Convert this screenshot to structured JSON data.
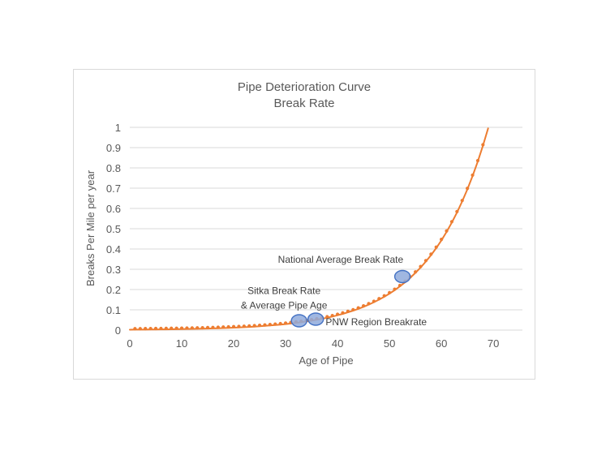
{
  "colors": {
    "curve_orange": "#ED7D31",
    "marker_fill_blue": "#8FAADC",
    "marker_stroke_blue": "#4472C4",
    "gridline_gray": "#D9D9D9",
    "axis_text_gray": "#595959",
    "annotation_text_gray": "#404040",
    "chart_border_gray": "#D9D9D9"
  },
  "chart_data": {
    "type": "line",
    "title": "Pipe Deterioration Curve",
    "subtitle": "Break Rate",
    "xlabel": "Age of Pipe",
    "ylabel": "Breaks Per Mile per year",
    "xlim": [
      0,
      75.6
    ],
    "ylim": [
      0,
      1
    ],
    "x_ticks": [
      0,
      10,
      20,
      30,
      40,
      50,
      60,
      70
    ],
    "y_ticks": [
      0,
      0.1,
      0.2,
      0.3,
      0.4,
      0.5,
      0.6,
      0.7,
      0.8,
      0.9,
      1
    ],
    "grid": "horizontal-only",
    "legend": "none",
    "series": [
      {
        "name": "Break rate deterioration curve",
        "color": "#ED7D31",
        "line_style": "solid",
        "marker": "dot",
        "x_start": 0,
        "x_step": 1,
        "values": [
          0.002,
          0.0022,
          0.0024,
          0.0026,
          0.0029,
          0.0031,
          0.0034,
          0.0038,
          0.0041,
          0.0045,
          0.0049,
          0.0054,
          0.0059,
          0.0064,
          0.007,
          0.0077,
          0.0084,
          0.0092,
          0.0101,
          0.0111,
          0.0121,
          0.0132,
          0.0145,
          0.0158,
          0.0173,
          0.019,
          0.0208,
          0.0227,
          0.0249,
          0.0272,
          0.0298,
          0.0326,
          0.0356,
          0.039,
          0.0426,
          0.0467,
          0.0511,
          0.0559,
          0.0611,
          0.0669,
          0.0732,
          0.0801,
          0.0876,
          0.0959,
          0.1049,
          0.1148,
          0.1256,
          0.1374,
          0.1503,
          0.1645,
          0.18,
          0.1969,
          0.2155,
          0.2357,
          0.2579,
          0.2822,
          0.3088,
          0.3379,
          0.3697,
          0.4045,
          0.4426,
          0.4843,
          0.5299,
          0.5798,
          0.6344,
          0.6941,
          0.7595,
          0.831,
          0.9093,
          0.9948
        ]
      }
    ],
    "markers": [
      {
        "name": "sitka-marker",
        "label": "Sitka Break Rate & Average Pipe Age",
        "x": 32.6,
        "y": 0.046
      },
      {
        "name": "pnw-marker",
        "label": "PNW Region Breakrate",
        "x": 35.8,
        "y": 0.054
      },
      {
        "name": "national-marker",
        "label": "National Average Break Rate",
        "x": 52.5,
        "y": 0.264
      }
    ],
    "annotations": [
      {
        "name": "national-average-annotation",
        "lines": [
          "National Average Break Rate"
        ],
        "x": 40.6,
        "y": 0.348,
        "align": "center"
      },
      {
        "name": "sitka-annotation",
        "lines": [
          "Sitka Break Rate",
          "& Average Pipe Age"
        ],
        "x": 29.7,
        "y": 0.158,
        "align": "center"
      },
      {
        "name": "pnw-annotation",
        "lines": [
          "PNW Region Breakrate"
        ],
        "x": 37.7,
        "y": 0.04,
        "align": "left"
      }
    ]
  }
}
